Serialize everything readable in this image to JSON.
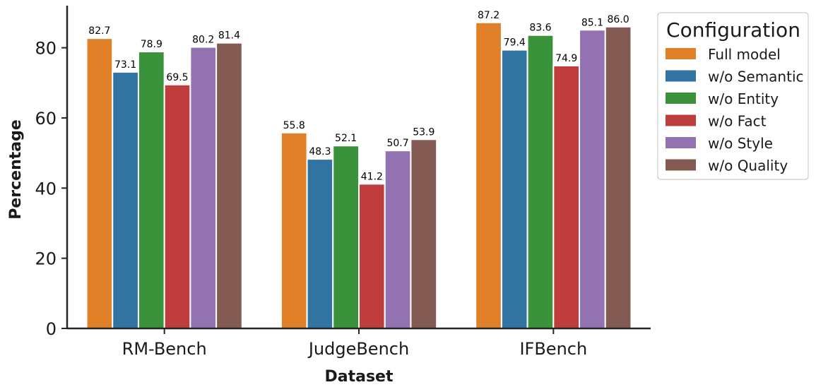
{
  "chart_data": {
    "type": "bar",
    "categories": [
      "RM-Bench",
      "JudgeBench",
      "IFBench"
    ],
    "series": [
      {
        "name": "Full model",
        "color": "#e08029",
        "values": [
          82.7,
          55.8,
          87.2
        ]
      },
      {
        "name": "w/o Semantic",
        "color": "#3274a1",
        "values": [
          73.1,
          48.3,
          79.4
        ]
      },
      {
        "name": "w/o Entity",
        "color": "#3a923a",
        "values": [
          78.9,
          52.1,
          83.6
        ]
      },
      {
        "name": "w/o Fact",
        "color": "#c03d3e",
        "values": [
          69.5,
          41.2,
          74.9
        ]
      },
      {
        "name": "w/o Style",
        "color": "#9372b2",
        "values": [
          80.2,
          50.7,
          85.1
        ]
      },
      {
        "name": "w/o Quality",
        "color": "#845b53",
        "values": [
          81.4,
          53.9,
          86.0
        ]
      }
    ],
    "xlabel": "Dataset",
    "ylabel": "Percentage",
    "ylim": [
      0,
      92
    ],
    "yticks": [
      0,
      20,
      40,
      60,
      80
    ],
    "legend_title": "Configuration",
    "legend_position": "outside-right-top",
    "grid": false
  }
}
